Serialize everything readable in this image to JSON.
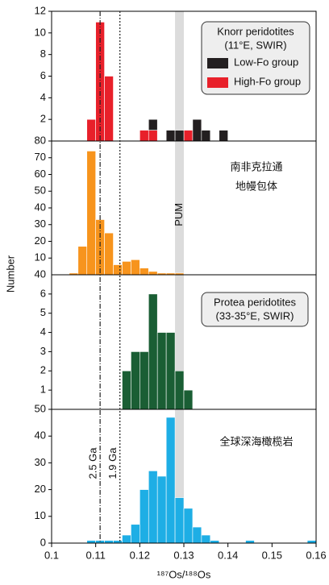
{
  "chart_data": [
    {
      "type": "histogram",
      "ylim": [
        0,
        12
      ],
      "yticks": [
        2,
        4,
        6,
        8,
        10,
        12
      ],
      "title_lines": [
        "Knorr peridotites",
        "(11°E, SWIR)"
      ],
      "bins": [
        0.108,
        0.11,
        0.112,
        0.114,
        0.116,
        0.118,
        0.12,
        0.122,
        0.124,
        0.126,
        0.128,
        0.13,
        0.132,
        0.134,
        0.136,
        0.138,
        0.14
      ],
      "series": [
        {
          "name": "Low-Fo group",
          "color": "#231f20",
          "values": [
            0,
            0,
            0,
            0,
            0,
            0,
            0,
            1,
            0,
            1,
            1,
            0,
            2,
            1,
            0,
            1
          ]
        },
        {
          "name": "High-Fo group",
          "color": "#e8202a",
          "values": [
            2,
            11,
            6,
            0,
            0,
            0,
            1,
            1,
            0,
            0,
            0,
            1,
            0,
            0,
            0,
            0
          ]
        }
      ]
    },
    {
      "type": "histogram",
      "ylim": [
        0,
        80
      ],
      "yticks": [
        10,
        20,
        30,
        40,
        50,
        60,
        70,
        80
      ],
      "corner_label": "40",
      "title_lines": [
        "南非克拉通",
        "地幔包体"
      ],
      "band": {
        "range": [
          0.128,
          0.13
        ],
        "label": "PUM"
      },
      "bins": [
        0.104,
        0.106,
        0.108,
        0.11,
        0.112,
        0.114,
        0.116,
        0.118,
        0.12,
        0.122,
        0.124,
        0.126,
        0.128,
        0.13
      ],
      "series": [
        {
          "color": "#f7941d",
          "values": [
            1,
            17,
            74,
            33,
            25,
            6,
            8,
            9,
            4,
            2,
            1,
            1,
            1
          ]
        }
      ]
    },
    {
      "type": "histogram",
      "ylim": [
        0,
        7
      ],
      "yticks": [
        1,
        2,
        3,
        4,
        5,
        6
      ],
      "title_lines": [
        "Protea peridotites",
        "(33-35°E, SWIR)"
      ],
      "bins": [
        0.116,
        0.118,
        0.12,
        0.122,
        0.124,
        0.126,
        0.128,
        0.13,
        0.132
      ],
      "series": [
        {
          "color": "#1a5e34",
          "values": [
            2,
            3,
            3,
            6,
            4,
            4,
            2,
            1
          ]
        }
      ]
    },
    {
      "type": "histogram",
      "ylim": [
        0,
        50
      ],
      "yticks": [
        0,
        10,
        20,
        30,
        40,
        50
      ],
      "title_lines": [
        "全球深海橄榄岩"
      ],
      "ylabel": "Number",
      "xlabel": "¹⁸⁷Os/¹⁸⁸Os",
      "xlim": [
        0.1,
        0.16
      ],
      "xticks": [
        0.1,
        0.11,
        0.12,
        0.13,
        0.14,
        0.15,
        0.16
      ],
      "reference_lines": [
        {
          "x": 0.111,
          "label": "2.5 Ga"
        },
        {
          "x": 0.1155,
          "label": "1.9 Ga"
        }
      ],
      "bins": [
        0.108,
        0.11,
        0.112,
        0.114,
        0.116,
        0.118,
        0.12,
        0.122,
        0.124,
        0.126,
        0.128,
        0.13,
        0.132,
        0.134,
        0.136,
        0.138,
        0.14,
        0.142,
        0.144,
        0.146,
        0.148,
        0.15,
        0.152,
        0.154,
        0.156,
        0.158,
        0.16
      ],
      "series": [
        {
          "color": "#1eaee5",
          "values": [
            1,
            1,
            1,
            1,
            3,
            7,
            20,
            27,
            25,
            47,
            17,
            13,
            6,
            3,
            1,
            0,
            0,
            0,
            1,
            0,
            0,
            0,
            0,
            0,
            0,
            1
          ]
        }
      ]
    }
  ]
}
